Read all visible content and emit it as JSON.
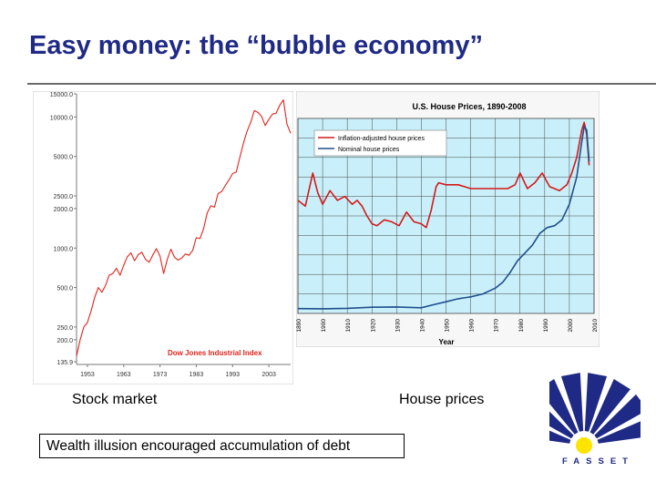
{
  "slide": {
    "title": "Easy money: the “bubble economy”",
    "caption_stock": "Stock market",
    "caption_house": "House prices",
    "note": "Wealth illusion encouraged accumulation of debt",
    "logo_text": "FASSET"
  },
  "colors": {
    "title": "#1f2a86",
    "stock_line": "#e2231a",
    "real_line": "#d31a1a",
    "nominal_line": "#1f4e8c",
    "plot_bg": "#c9f0fa",
    "logo_blue": "#1f2a86",
    "logo_yellow": "#ffe300"
  },
  "chart_data": [
    {
      "type": "line",
      "title": "Dow Jones Industrial Index",
      "scale": "log",
      "ylim": [
        135.9,
        15000
      ],
      "y_tick_labels": [
        "15000.0",
        "10000.0",
        "5000.0",
        "2500.0",
        "2000.0",
        "1000.0",
        "500.0",
        "250.0",
        "200.0",
        "135.9"
      ],
      "x_tick_labels": [
        "1953",
        "1963",
        "1973",
        "1983",
        "1993",
        "2003"
      ],
      "xlim": [
        1950,
        2009
      ],
      "series": [
        {
          "name": "Dow Jones Industrial Index",
          "x": [
            1950,
            1951,
            1952,
            1953,
            1954,
            1955,
            1956,
            1957,
            1958,
            1959,
            1960,
            1961,
            1962,
            1963,
            1964,
            1965,
            1966,
            1967,
            1968,
            1969,
            1970,
            1971,
            1972,
            1973,
            1974,
            1975,
            1976,
            1977,
            1978,
            1979,
            1980,
            1981,
            1982,
            1983,
            1984,
            1985,
            1986,
            1987,
            1988,
            1989,
            1990,
            1991,
            1992,
            1993,
            1994,
            1995,
            1996,
            1997,
            1998,
            1999,
            2000,
            2001,
            2002,
            2003,
            2004,
            2005,
            2006,
            2007,
            2008,
            2009
          ],
          "values": [
            150,
            200,
            250,
            270,
            330,
            420,
            500,
            460,
            520,
            620,
            640,
            700,
            620,
            740,
            860,
            920,
            800,
            890,
            930,
            820,
            780,
            880,
            990,
            870,
            640,
            820,
            980,
            850,
            810,
            840,
            900,
            880,
            960,
            1200,
            1180,
            1400,
            1850,
            2100,
            2050,
            2600,
            2700,
            3000,
            3300,
            3700,
            3800,
            4900,
            6300,
            7800,
            9100,
            11200,
            10800,
            10100,
            8600,
            9600,
            10500,
            10700,
            12300,
            13500,
            8800,
            7500
          ]
        }
      ]
    },
    {
      "type": "line",
      "title": "U.S. House Prices, 1890-2008",
      "xlabel": "Year",
      "x_tick_labels": [
        "1890",
        "1900",
        "1910",
        "1920",
        "1930",
        "1940",
        "1950",
        "1960",
        "1970",
        "1980",
        "1990",
        "2000",
        "2010"
      ],
      "xlim": [
        1890,
        2010
      ],
      "ylim": [
        0,
        100
      ],
      "legend": [
        "Inflation-adjusted house prices",
        "Nominal house prices"
      ],
      "legend_position": "top-left",
      "series": [
        {
          "name": "Inflation-adjusted house prices",
          "x": [
            1890,
            1893,
            1896,
            1898,
            1900,
            1903,
            1906,
            1909,
            1912,
            1914,
            1916,
            1918,
            1920,
            1922,
            1925,
            1928,
            1931,
            1934,
            1937,
            1940,
            1942,
            1944,
            1946,
            1947,
            1950,
            1955,
            1960,
            1965,
            1970,
            1975,
            1978,
            1980,
            1983,
            1986,
            1989,
            1992,
            1996,
            1999,
            2001,
            2003,
            2005,
            2006,
            2007,
            2008
          ],
          "values": [
            58,
            55,
            72,
            62,
            56,
            63,
            58,
            60,
            56,
            58,
            55,
            50,
            46,
            45,
            48,
            47,
            45,
            52,
            47,
            46,
            44,
            53,
            65,
            67,
            66,
            66,
            64,
            64,
            64,
            64,
            66,
            72,
            64,
            67,
            72,
            65,
            63,
            66,
            72,
            80,
            94,
            98,
            92,
            76
          ]
        },
        {
          "name": "Nominal house prices",
          "x": [
            1890,
            1900,
            1910,
            1920,
            1930,
            1940,
            1945,
            1950,
            1955,
            1960,
            1965,
            1970,
            1973,
            1976,
            1979,
            1982,
            1985,
            1988,
            1991,
            1994,
            1997,
            2000,
            2003,
            2005,
            2006,
            2007,
            2008
          ],
          "values": [
            2.5,
            2.4,
            2.6,
            3.2,
            3.3,
            2.9,
            4.5,
            6,
            7.5,
            8.5,
            10,
            13,
            16,
            21,
            27,
            31,
            35,
            41,
            44,
            45,
            48,
            56,
            70,
            88,
            96,
            94,
            78
          ]
        }
      ]
    }
  ]
}
